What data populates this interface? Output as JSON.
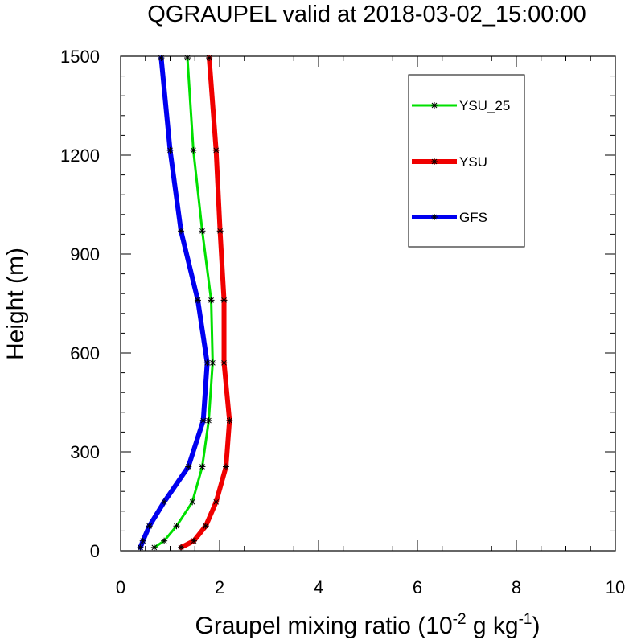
{
  "chart_data": {
    "type": "line",
    "title": "QGRAUPEL valid at 2018-03-02_15:00:00",
    "xlabel": {
      "parts": [
        "Graupel mixing ratio (10",
        "-2",
        " g kg",
        "-1",
        ")"
      ]
    },
    "ylabel": "Height (m)",
    "xlim": [
      0,
      10
    ],
    "ylim": [
      0,
      1500
    ],
    "xticks": [
      0,
      2,
      4,
      6,
      8,
      10
    ],
    "xtick_labels": [
      "0",
      "2",
      "4",
      "6",
      "8",
      "10"
    ],
    "yticks": [
      0,
      300,
      600,
      900,
      1200,
      1500
    ],
    "ytick_labels": [
      "0",
      "300",
      "600",
      "900",
      "1200",
      "1500"
    ],
    "legend_position": "top-right",
    "series": [
      {
        "name": "YSU_25",
        "color": "#00e000",
        "x": [
          0.68,
          0.88,
          1.13,
          1.45,
          1.65,
          1.78,
          1.86,
          1.83,
          1.65,
          1.47,
          1.35
        ],
        "y": [
          10,
          30,
          75,
          148,
          255,
          395,
          570,
          760,
          970,
          1215,
          1495
        ]
      },
      {
        "name": "YSU",
        "color": "#f00000",
        "x": [
          1.22,
          1.48,
          1.72,
          1.93,
          2.13,
          2.2,
          2.09,
          2.09,
          2.01,
          1.93,
          1.79
        ],
        "y": [
          10,
          30,
          75,
          148,
          255,
          395,
          570,
          760,
          970,
          1215,
          1495
        ]
      },
      {
        "name": "GFS",
        "color": "#0000f0",
        "x": [
          0.4,
          0.45,
          0.58,
          0.88,
          1.37,
          1.67,
          1.75,
          1.56,
          1.22,
          1.0,
          0.82
        ],
        "y": [
          10,
          30,
          75,
          148,
          255,
          395,
          570,
          760,
          970,
          1215,
          1495
        ]
      }
    ]
  }
}
